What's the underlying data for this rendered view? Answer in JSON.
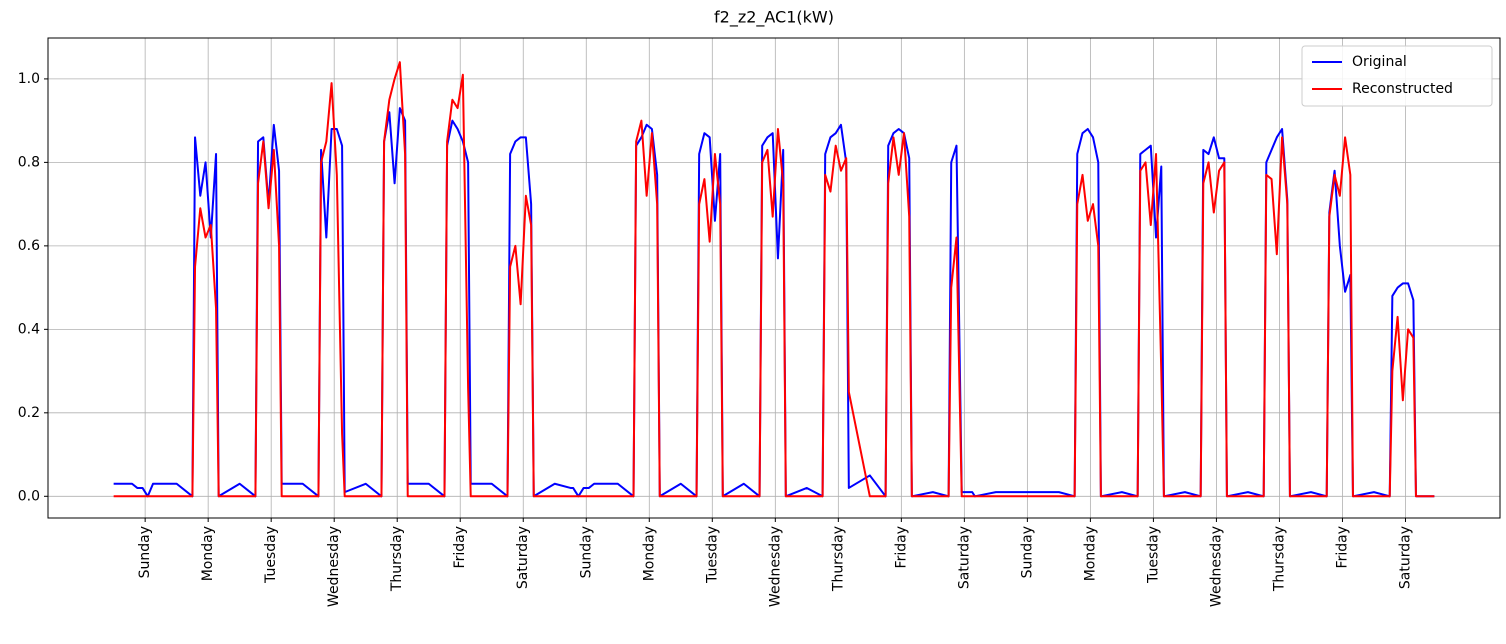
{
  "chart_data": {
    "type": "line",
    "title": "f2_z2_AC1(kW)",
    "x": [
      0,
      6,
      7,
      9,
      11,
      13,
      15,
      16,
      24,
      30,
      31,
      33,
      35,
      37,
      39,
      40,
      48,
      54,
      55,
      57,
      59,
      61,
      63,
      64,
      72,
      78,
      79,
      81,
      83,
      85,
      87,
      88,
      96,
      102,
      103,
      105,
      107,
      109,
      111,
      112,
      120,
      126,
      127,
      129,
      131,
      133,
      135,
      136,
      144,
      150,
      151,
      153,
      155,
      157,
      159,
      160,
      168,
      174,
      175,
      177,
      179,
      181,
      183,
      184,
      192,
      198,
      199,
      201,
      203,
      205,
      207,
      208,
      216,
      222,
      223,
      225,
      227,
      229,
      231,
      232,
      240,
      246,
      247,
      249,
      251,
      253,
      255,
      256,
      264,
      270,
      271,
      273,
      275,
      277,
      279,
      280,
      288,
      294,
      295,
      297,
      299,
      301,
      303,
      304,
      312,
      318,
      319,
      321,
      323,
      325,
      327,
      328,
      336,
      342,
      343,
      345,
      347,
      349,
      351,
      352,
      360,
      366,
      367,
      369,
      371,
      373,
      375,
      376,
      384,
      390,
      391,
      393,
      395,
      397,
      399,
      400,
      408,
      414,
      415,
      417,
      419,
      421,
      423,
      424,
      432,
      438,
      439,
      441,
      443,
      445,
      447,
      448,
      456,
      462,
      463,
      465,
      467,
      469,
      471,
      472,
      480,
      486,
      487,
      489,
      491,
      493,
      495,
      496,
      503
    ],
    "series": [
      {
        "name": "Original",
        "color": "#0000ff",
        "values": [
          0.03,
          0.03,
          0.03,
          0.02,
          0.02,
          0.0,
          0.03,
          0.03,
          0.03,
          0.0,
          0.86,
          0.72,
          0.8,
          0.62,
          0.82,
          0.0,
          0.03,
          0.0,
          0.85,
          0.86,
          0.7,
          0.89,
          0.78,
          0.03,
          0.03,
          0.0,
          0.83,
          0.62,
          0.88,
          0.88,
          0.84,
          0.01,
          0.03,
          0.0,
          0.85,
          0.92,
          0.75,
          0.93,
          0.9,
          0.03,
          0.03,
          0.0,
          0.84,
          0.9,
          0.88,
          0.85,
          0.8,
          0.03,
          0.03,
          0.0,
          0.82,
          0.85,
          0.86,
          0.86,
          0.7,
          0.0,
          0.03,
          0.02,
          0.02,
          0.0,
          0.02,
          0.02,
          0.03,
          0.03,
          0.03,
          0.0,
          0.84,
          0.86,
          0.89,
          0.88,
          0.77,
          0.0,
          0.03,
          0.0,
          0.82,
          0.87,
          0.86,
          0.66,
          0.82,
          0.0,
          0.03,
          0.0,
          0.84,
          0.86,
          0.87,
          0.57,
          0.83,
          0.0,
          0.02,
          0.0,
          0.82,
          0.86,
          0.87,
          0.89,
          0.8,
          0.02,
          0.05,
          0.0,
          0.84,
          0.87,
          0.88,
          0.87,
          0.81,
          0.0,
          0.01,
          0.0,
          0.8,
          0.84,
          0.01,
          0.01,
          0.01,
          0.0,
          0.01,
          0.01,
          0.01,
          0.01,
          0.01,
          0.01,
          0.01,
          0.01,
          0.01,
          0.0,
          0.82,
          0.87,
          0.88,
          0.86,
          0.8,
          0.0,
          0.01,
          0.0,
          0.82,
          0.83,
          0.84,
          0.62,
          0.79,
          0.0,
          0.01,
          0.0,
          0.83,
          0.82,
          0.86,
          0.81,
          0.81,
          0.0,
          0.01,
          0.0,
          0.8,
          0.83,
          0.86,
          0.88,
          0.71,
          0.0,
          0.01,
          0.0,
          0.68,
          0.78,
          0.6,
          0.49,
          0.53,
          0.0,
          0.01,
          0.0,
          0.48,
          0.5,
          0.51,
          0.51,
          0.47,
          0.0,
          0.0
        ]
      },
      {
        "name": "Reconstructed",
        "color": "#ff0000",
        "values": [
          0,
          0,
          0,
          0,
          0,
          0,
          0,
          0,
          0,
          0,
          0.55,
          0.69,
          0.62,
          0.65,
          0.45,
          0,
          0,
          0,
          0.75,
          0.85,
          0.69,
          0.83,
          0.6,
          0,
          0,
          0,
          0.8,
          0.85,
          0.99,
          0.77,
          0.15,
          0,
          0,
          0,
          0.85,
          0.95,
          1.0,
          1.04,
          0.82,
          0,
          0,
          0,
          0.85,
          0.95,
          0.93,
          1.01,
          0.26,
          0,
          0,
          0,
          0.55,
          0.6,
          0.46,
          0.72,
          0.65,
          0,
          0,
          0,
          0,
          0,
          0,
          0,
          0,
          0,
          0,
          0,
          0.85,
          0.9,
          0.72,
          0.87,
          0.7,
          0,
          0,
          0,
          0.7,
          0.76,
          0.61,
          0.82,
          0.7,
          0,
          0,
          0,
          0.8,
          0.83,
          0.67,
          0.88,
          0.75,
          0,
          0,
          0,
          0.77,
          0.73,
          0.84,
          0.78,
          0.81,
          0.25,
          0,
          0,
          0.75,
          0.86,
          0.77,
          0.87,
          0.67,
          0,
          0,
          0,
          0.5,
          0.62,
          0,
          0,
          0,
          0,
          0,
          0,
          0,
          0,
          0,
          0,
          0,
          0,
          0,
          0,
          0.7,
          0.77,
          0.66,
          0.7,
          0.6,
          0,
          0,
          0,
          0.78,
          0.8,
          0.65,
          0.82,
          0.3,
          0,
          0,
          0,
          0.75,
          0.8,
          0.68,
          0.78,
          0.8,
          0,
          0,
          0,
          0.77,
          0.76,
          0.58,
          0.86,
          0.7,
          0,
          0,
          0,
          0.67,
          0.77,
          0.72,
          0.86,
          0.77,
          0,
          0,
          0,
          0.3,
          0.43,
          0.23,
          0.4,
          0.38,
          0,
          0
        ]
      }
    ],
    "xlim": [
      -25,
      528
    ],
    "ylim": [
      -0.052,
      1.098
    ],
    "xticks": [
      {
        "value": 12,
        "label": "Sunday"
      },
      {
        "value": 36,
        "label": "Monday"
      },
      {
        "value": 60,
        "label": "Tuesday"
      },
      {
        "value": 84,
        "label": "Wednesday"
      },
      {
        "value": 108,
        "label": "Thursday"
      },
      {
        "value": 132,
        "label": "Friday"
      },
      {
        "value": 156,
        "label": "Saturday"
      },
      {
        "value": 180,
        "label": "Sunday"
      },
      {
        "value": 204,
        "label": "Monday"
      },
      {
        "value": 228,
        "label": "Tuesday"
      },
      {
        "value": 252,
        "label": "Wednesday"
      },
      {
        "value": 276,
        "label": "Thursday"
      },
      {
        "value": 300,
        "label": "Friday"
      },
      {
        "value": 324,
        "label": "Saturday"
      },
      {
        "value": 348,
        "label": "Sunday"
      },
      {
        "value": 372,
        "label": "Monday"
      },
      {
        "value": 396,
        "label": "Tuesday"
      },
      {
        "value": 420,
        "label": "Wednesday"
      },
      {
        "value": 444,
        "label": "Thursday"
      },
      {
        "value": 468,
        "label": "Friday"
      },
      {
        "value": 492,
        "label": "Saturday"
      }
    ],
    "yticks": [
      {
        "value": 0,
        "label": "0.0"
      },
      {
        "value": 0.2,
        "label": "0.2"
      },
      {
        "value": 0.4,
        "label": "0.4"
      },
      {
        "value": 0.6,
        "label": "0.6"
      },
      {
        "value": 0.8,
        "label": "0.8"
      },
      {
        "value": 1.0,
        "label": "1.0"
      }
    ],
    "grid": true,
    "legend": "upper right"
  }
}
